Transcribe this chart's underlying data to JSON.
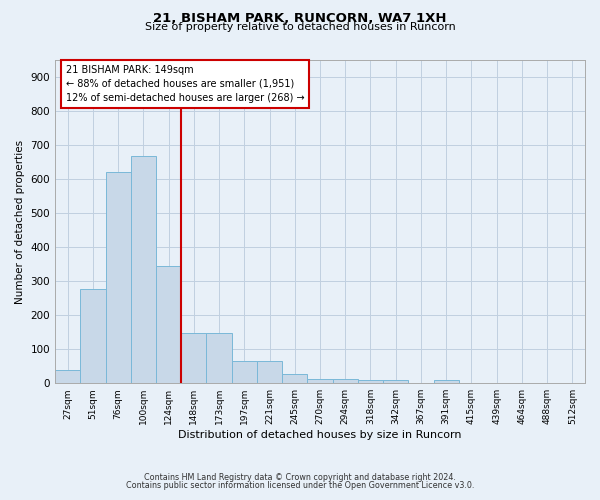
{
  "title_line1": "21, BISHAM PARK, RUNCORN, WA7 1XH",
  "title_line2": "Size of property relative to detached houses in Runcorn",
  "xlabel": "Distribution of detached houses by size in Runcorn",
  "ylabel": "Number of detached properties",
  "categories": [
    "27sqm",
    "51sqm",
    "76sqm",
    "100sqm",
    "124sqm",
    "148sqm",
    "173sqm",
    "197sqm",
    "221sqm",
    "245sqm",
    "270sqm",
    "294sqm",
    "318sqm",
    "342sqm",
    "367sqm",
    "391sqm",
    "415sqm",
    "439sqm",
    "464sqm",
    "488sqm",
    "512sqm"
  ],
  "values": [
    40,
    278,
    622,
    668,
    345,
    148,
    148,
    65,
    65,
    28,
    13,
    13,
    8,
    8,
    0,
    8,
    0,
    0,
    0,
    0,
    0
  ],
  "bar_color": "#c8d8e8",
  "bar_edge_color": "#7ab8d8",
  "vline_color": "#cc0000",
  "annotation_text": "21 BISHAM PARK: 149sqm\n← 88% of detached houses are smaller (1,951)\n12% of semi-detached houses are larger (268) →",
  "annotation_box_color": "#ffffff",
  "annotation_box_edge_color": "#cc0000",
  "ylim": [
    0,
    950
  ],
  "yticks": [
    0,
    100,
    200,
    300,
    400,
    500,
    600,
    700,
    800,
    900
  ],
  "grid_color": "#c0cfe0",
  "bg_color": "#e8f0f8",
  "footnote_line1": "Contains HM Land Registry data © Crown copyright and database right 2024.",
  "footnote_line2": "Contains public sector information licensed under the Open Government Licence v3.0."
}
